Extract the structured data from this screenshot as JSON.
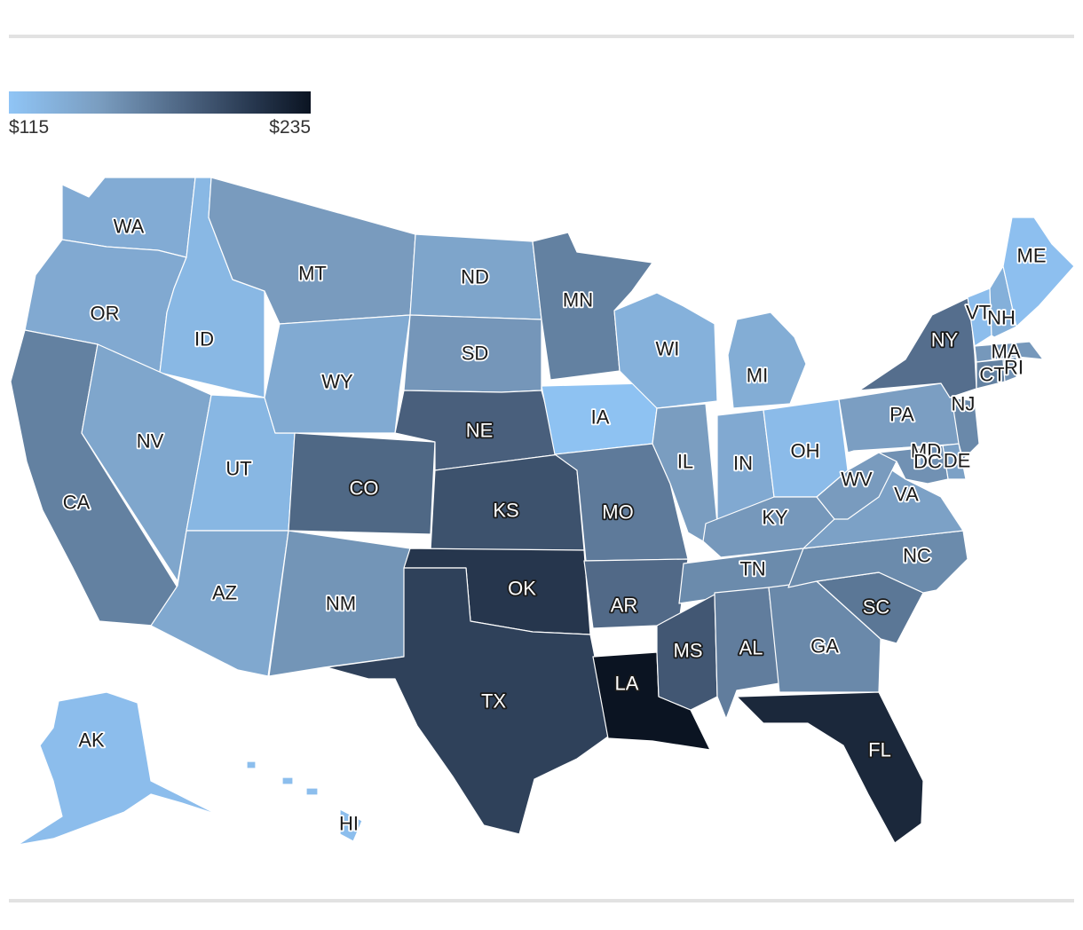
{
  "legend": {
    "min_label": "$115",
    "max_label": "$235",
    "min_value": 115,
    "max_value": 235
  },
  "colors": {
    "low": "#90c5f6",
    "high": "#0b1422",
    "border": "#ffffff",
    "rule": "#e2e2e2"
  },
  "states": [
    {
      "abbr": "WA",
      "value": 138
    },
    {
      "abbr": "OR",
      "value": 140
    },
    {
      "abbr": "CA",
      "value": 168
    },
    {
      "abbr": "ID",
      "value": 127
    },
    {
      "abbr": "NV",
      "value": 143
    },
    {
      "abbr": "UT",
      "value": 128
    },
    {
      "abbr": "AZ",
      "value": 141
    },
    {
      "abbr": "MT",
      "value": 152
    },
    {
      "abbr": "WY",
      "value": 139
    },
    {
      "abbr": "CO",
      "value": 183
    },
    {
      "abbr": "NM",
      "value": 156
    },
    {
      "abbr": "ND",
      "value": 144
    },
    {
      "abbr": "SD",
      "value": 155
    },
    {
      "abbr": "NE",
      "value": 188
    },
    {
      "abbr": "KS",
      "value": 196
    },
    {
      "abbr": "OK",
      "value": 213
    },
    {
      "abbr": "TX",
      "value": 206
    },
    {
      "abbr": "MN",
      "value": 168
    },
    {
      "abbr": "IA",
      "value": 118
    },
    {
      "abbr": "MO",
      "value": 172
    },
    {
      "abbr": "AR",
      "value": 182
    },
    {
      "abbr": "LA",
      "value": 235
    },
    {
      "abbr": "WI",
      "value": 133
    },
    {
      "abbr": "IL",
      "value": 151
    },
    {
      "abbr": "MI",
      "value": 137
    },
    {
      "abbr": "IN",
      "value": 140
    },
    {
      "abbr": "OH",
      "value": 124
    },
    {
      "abbr": "KY",
      "value": 154
    },
    {
      "abbr": "TN",
      "value": 162
    },
    {
      "abbr": "MS",
      "value": 193
    },
    {
      "abbr": "AL",
      "value": 170
    },
    {
      "abbr": "GA",
      "value": 163
    },
    {
      "abbr": "FL",
      "value": 222
    },
    {
      "abbr": "SC",
      "value": 174
    },
    {
      "abbr": "NC",
      "value": 162
    },
    {
      "abbr": "VA",
      "value": 147
    },
    {
      "abbr": "WV",
      "value": 152
    },
    {
      "abbr": "PA",
      "value": 150
    },
    {
      "abbr": "NY",
      "value": 179
    },
    {
      "abbr": "NJ",
      "value": 163
    },
    {
      "abbr": "DE",
      "value": 147
    },
    {
      "abbr": "MD",
      "value": 158
    },
    {
      "abbr": "DC",
      "value": 150
    },
    {
      "abbr": "CT",
      "value": 168
    },
    {
      "abbr": "RI",
      "value": 158
    },
    {
      "abbr": "MA",
      "value": 154
    },
    {
      "abbr": "VT",
      "value": 122
    },
    {
      "abbr": "NH",
      "value": 134
    },
    {
      "abbr": "ME",
      "value": 120
    },
    {
      "abbr": "AK",
      "value": 122
    },
    {
      "abbr": "HI",
      "value": 121
    }
  ]
}
